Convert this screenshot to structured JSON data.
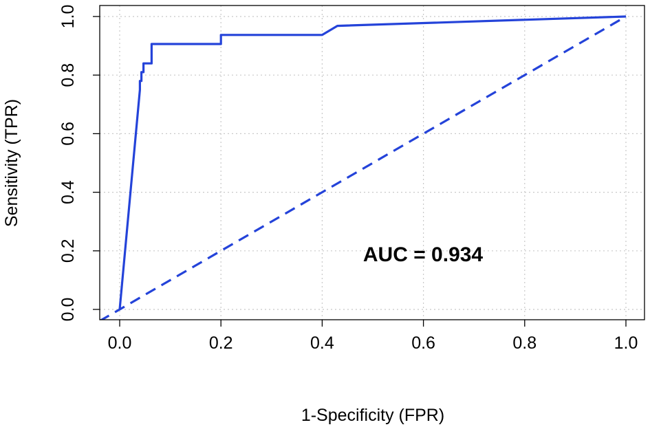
{
  "chart_data": {
    "type": "line",
    "xlabel": "1-Specificity (FPR)",
    "ylabel": "Sensitivity (TPR)",
    "xlim": [
      0.0,
      1.0
    ],
    "ylim": [
      0.0,
      1.0
    ],
    "x_ticks": [
      "0.0",
      "0.2",
      "0.4",
      "0.6",
      "0.8",
      "1.0"
    ],
    "y_ticks": [
      "0.0",
      "0.2",
      "0.4",
      "0.6",
      "0.8",
      "1.0"
    ],
    "grid": true,
    "annotation": "AUC = 0.934",
    "line_color": "#2443d9",
    "series": [
      {
        "style": "solid",
        "x": [
          0.0,
          0.04,
          0.04,
          0.043,
          0.043,
          0.047,
          0.047,
          0.05,
          0.05,
          0.063,
          0.063,
          0.2,
          0.2,
          0.4,
          0.43,
          1.0
        ],
        "y": [
          0.0,
          0.75,
          0.78,
          0.78,
          0.81,
          0.81,
          0.84,
          0.84,
          0.84,
          0.84,
          0.906,
          0.906,
          0.937,
          0.937,
          0.968,
          1.0
        ]
      },
      {
        "style": "dashed",
        "x": [
          -0.04,
          1.0
        ],
        "y": [
          -0.04,
          1.0
        ]
      }
    ]
  }
}
